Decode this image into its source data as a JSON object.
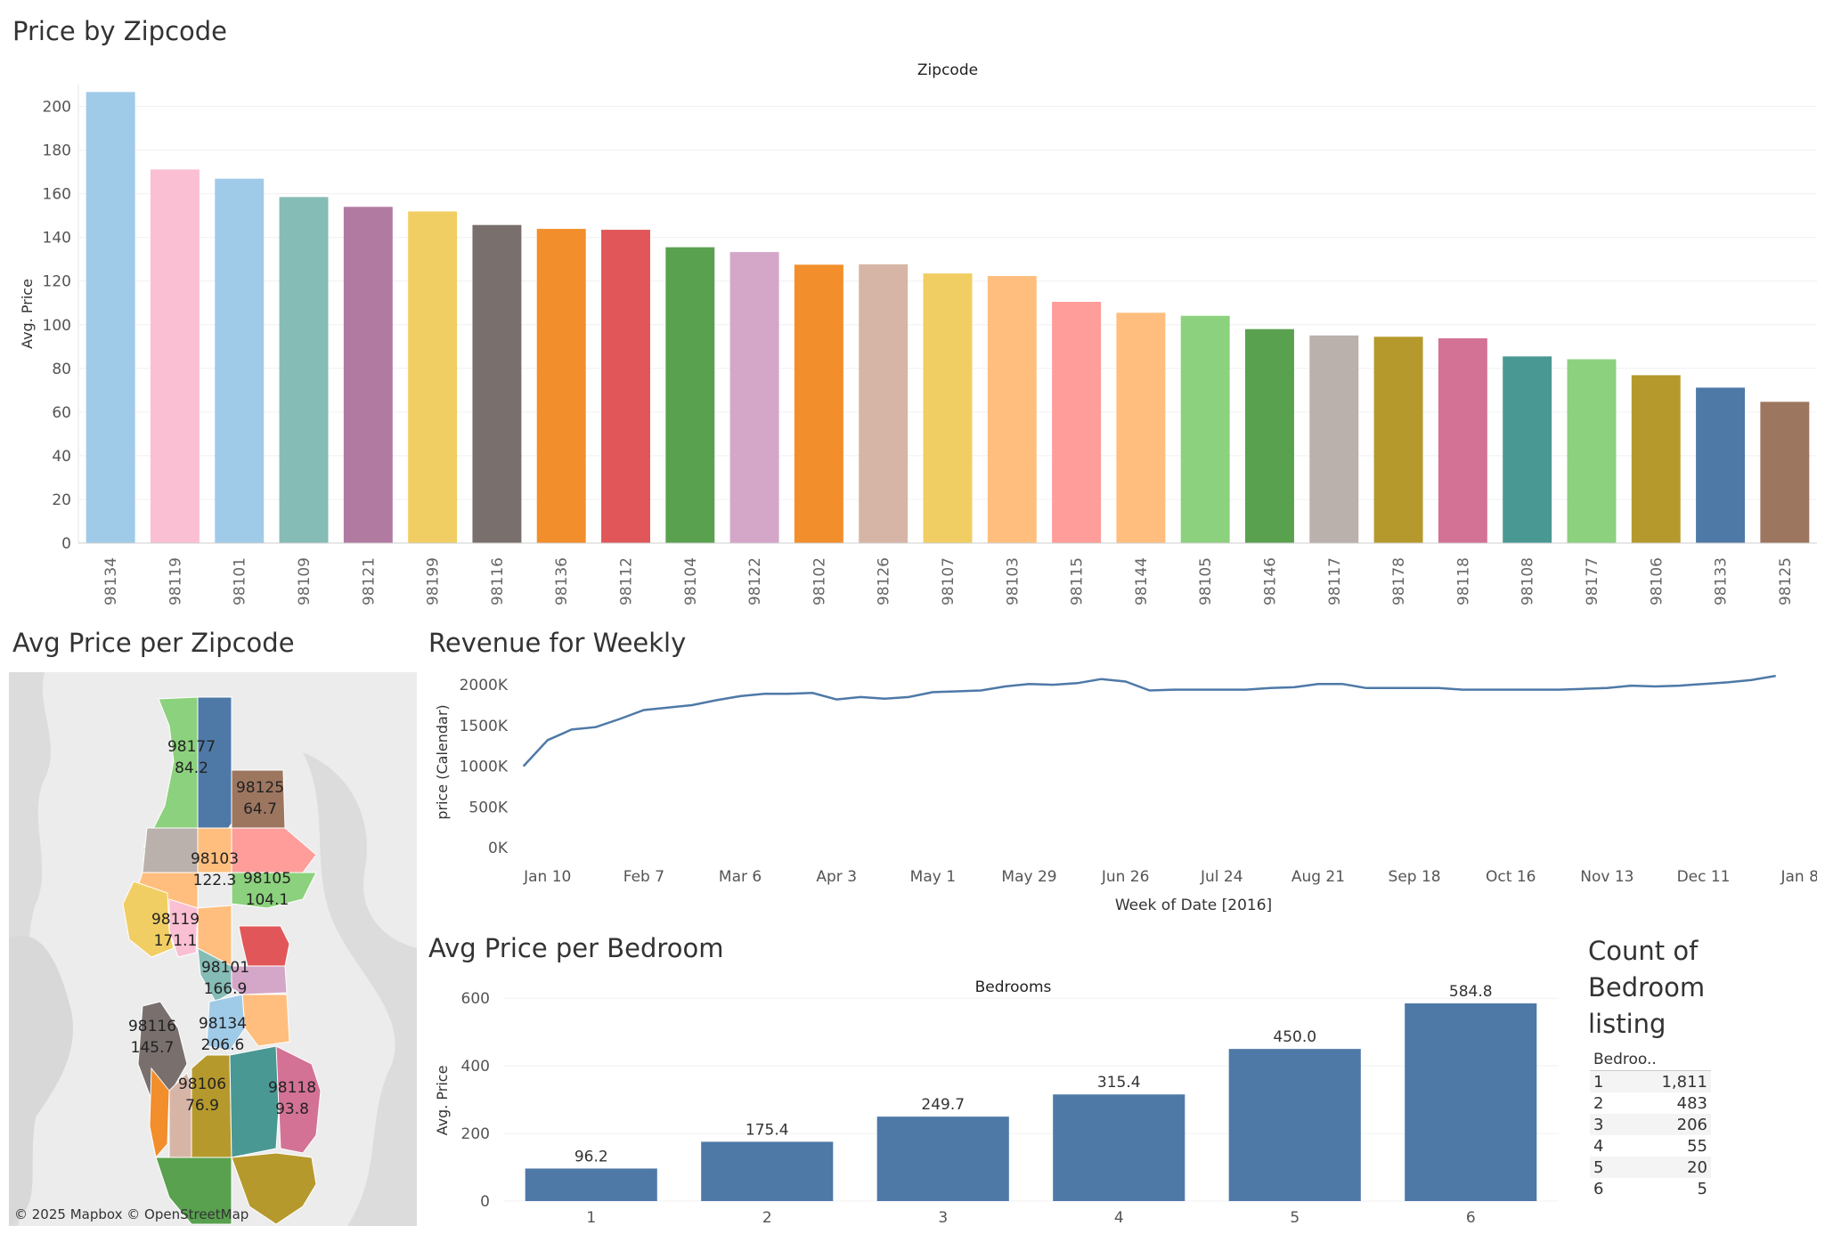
{
  "titles": {
    "top": "Price by Zipcode",
    "map": "Avg Price per Zipcode",
    "line": "Revenue  for Weekly",
    "bed": "Avg Price per Bedroom",
    "count": "Count of Bedroom listing"
  },
  "map": {
    "copyright": "© 2025 Mapbox © OpenStreetMap",
    "labels": [
      {
        "zip": "98177",
        "value": "84.2"
      },
      {
        "zip": "98125",
        "value": "64.7"
      },
      {
        "zip": "98103",
        "value": "122.3"
      },
      {
        "zip": "98105",
        "value": "104.1"
      },
      {
        "zip": "98119",
        "value": "171.1"
      },
      {
        "zip": "98101",
        "value": "166.9"
      },
      {
        "zip": "98116",
        "value": "145.7"
      },
      {
        "zip": "98134",
        "value": "206.6"
      },
      {
        "zip": "98106",
        "value": "76.9"
      },
      {
        "zip": "98118",
        "value": "93.8"
      }
    ]
  },
  "count_table": {
    "header": "Bedroo..",
    "rows": [
      {
        "bedrooms": "1",
        "count": "1,811"
      },
      {
        "bedrooms": "2",
        "count": "483"
      },
      {
        "bedrooms": "3",
        "count": "206"
      },
      {
        "bedrooms": "4",
        "count": "55"
      },
      {
        "bedrooms": "5",
        "count": "20"
      },
      {
        "bedrooms": "6",
        "count": "5"
      }
    ]
  },
  "chart_data": [
    {
      "type": "bar",
      "title": "Price by Zipcode",
      "column_header": "Zipcode",
      "ylabel": "Avg. Price",
      "ylim": [
        0,
        210
      ],
      "yticks": [
        0,
        20,
        40,
        60,
        80,
        100,
        120,
        140,
        160,
        180,
        200
      ],
      "categories": [
        "98134",
        "98119",
        "98101",
        "98109",
        "98121",
        "98199",
        "98116",
        "98136",
        "98112",
        "98104",
        "98122",
        "98102",
        "98126",
        "98107",
        "98103",
        "98115",
        "98144",
        "98105",
        "98146",
        "98117",
        "98178",
        "98118",
        "98108",
        "98177",
        "98106",
        "98133",
        "98125"
      ],
      "values": [
        206.6,
        171.1,
        166.9,
        158.5,
        154.0,
        151.9,
        145.7,
        143.9,
        143.5,
        135.5,
        133.3,
        127.5,
        127.7,
        123.5,
        122.3,
        110.5,
        105.5,
        104.1,
        98.0,
        95.1,
        94.5,
        93.8,
        85.5,
        84.2,
        76.9,
        71.2,
        64.7
      ],
      "colors": [
        "#a0cbe8",
        "#fabfd2",
        "#a0cbe8",
        "#86bcb6",
        "#b07aa1",
        "#f1ce63",
        "#79706e",
        "#f28e2b",
        "#e15759",
        "#59a14f",
        "#d4a6c8",
        "#f28e2b",
        "#d7b5a6",
        "#f1ce63",
        "#ffbe7d",
        "#ff9d9a",
        "#ffbe7d",
        "#8cd17d",
        "#59a14f",
        "#bab0ac",
        "#b6992d",
        "#d37295",
        "#499894",
        "#8cd17d",
        "#b6992d",
        "#4e79a7",
        "#9d7660"
      ],
      "grid": true
    },
    {
      "type": "line",
      "title": "Revenue  for Weekly",
      "xlabel": "Week of Date [2016]",
      "ylabel": "price (Calendar)",
      "xticks": [
        "Jan 10",
        "Feb 7",
        "Mar 6",
        "Apr 3",
        "May 1",
        "May 29",
        "Jun 26",
        "Jul 24",
        "Aug 21",
        "Sep 18",
        "Oct 16",
        "Nov 13",
        "Dec 11",
        "Jan 8"
      ],
      "yticks": [
        "0K",
        "500K",
        "1000K",
        "1500K",
        "2000K"
      ],
      "ylim": [
        0,
        2100000
      ],
      "color": "#4e79a7",
      "x": [
        "2016-01-03",
        "2016-01-10",
        "2016-01-17",
        "2016-01-24",
        "2016-01-31",
        "2016-02-07",
        "2016-02-14",
        "2016-02-21",
        "2016-02-28",
        "2016-03-06",
        "2016-03-13",
        "2016-03-20",
        "2016-03-27",
        "2016-04-03",
        "2016-04-10",
        "2016-04-17",
        "2016-04-24",
        "2016-05-01",
        "2016-05-08",
        "2016-05-15",
        "2016-05-22",
        "2016-05-29",
        "2016-06-05",
        "2016-06-12",
        "2016-06-19",
        "2016-06-26",
        "2016-07-03",
        "2016-07-10",
        "2016-07-17",
        "2016-07-24",
        "2016-07-31",
        "2016-08-07",
        "2016-08-14",
        "2016-08-21",
        "2016-08-28",
        "2016-09-04",
        "2016-09-11",
        "2016-09-18",
        "2016-09-25",
        "2016-10-02",
        "2016-10-09",
        "2016-10-16",
        "2016-10-23",
        "2016-10-30",
        "2016-11-06",
        "2016-11-13",
        "2016-11-20",
        "2016-11-27",
        "2016-12-04",
        "2016-12-11",
        "2016-12-18",
        "2016-12-25",
        "2017-01-01"
      ],
      "values": [
        1000000,
        1320000,
        1450000,
        1480000,
        1580000,
        1690000,
        1720000,
        1750000,
        1810000,
        1860000,
        1890000,
        1890000,
        1900000,
        1820000,
        1850000,
        1830000,
        1850000,
        1910000,
        1920000,
        1930000,
        1980000,
        2010000,
        2000000,
        2020000,
        2070000,
        2040000,
        1930000,
        1940000,
        1940000,
        1940000,
        1940000,
        1960000,
        1970000,
        2010000,
        2010000,
        1960000,
        1960000,
        1960000,
        1960000,
        1940000,
        1940000,
        1940000,
        1940000,
        1940000,
        1950000,
        1960000,
        1990000,
        1980000,
        1990000,
        2010000,
        2030000,
        2060000,
        2110000
      ],
      "grid": false
    },
    {
      "type": "bar",
      "title": "Avg Price per Bedroom",
      "column_header": "Bedrooms",
      "ylabel": "Avg. Price",
      "ylim": [
        0,
        640
      ],
      "yticks": [
        0,
        200,
        400,
        600
      ],
      "categories": [
        "1",
        "2",
        "3",
        "4",
        "5",
        "6"
      ],
      "values": [
        96.2,
        175.4,
        249.7,
        315.4,
        450.0,
        584.8
      ],
      "labels": [
        "96.2",
        "175.4",
        "249.7",
        "315.4",
        "450.0",
        "584.8"
      ],
      "color": "#4e79a7",
      "grid": true
    }
  ]
}
